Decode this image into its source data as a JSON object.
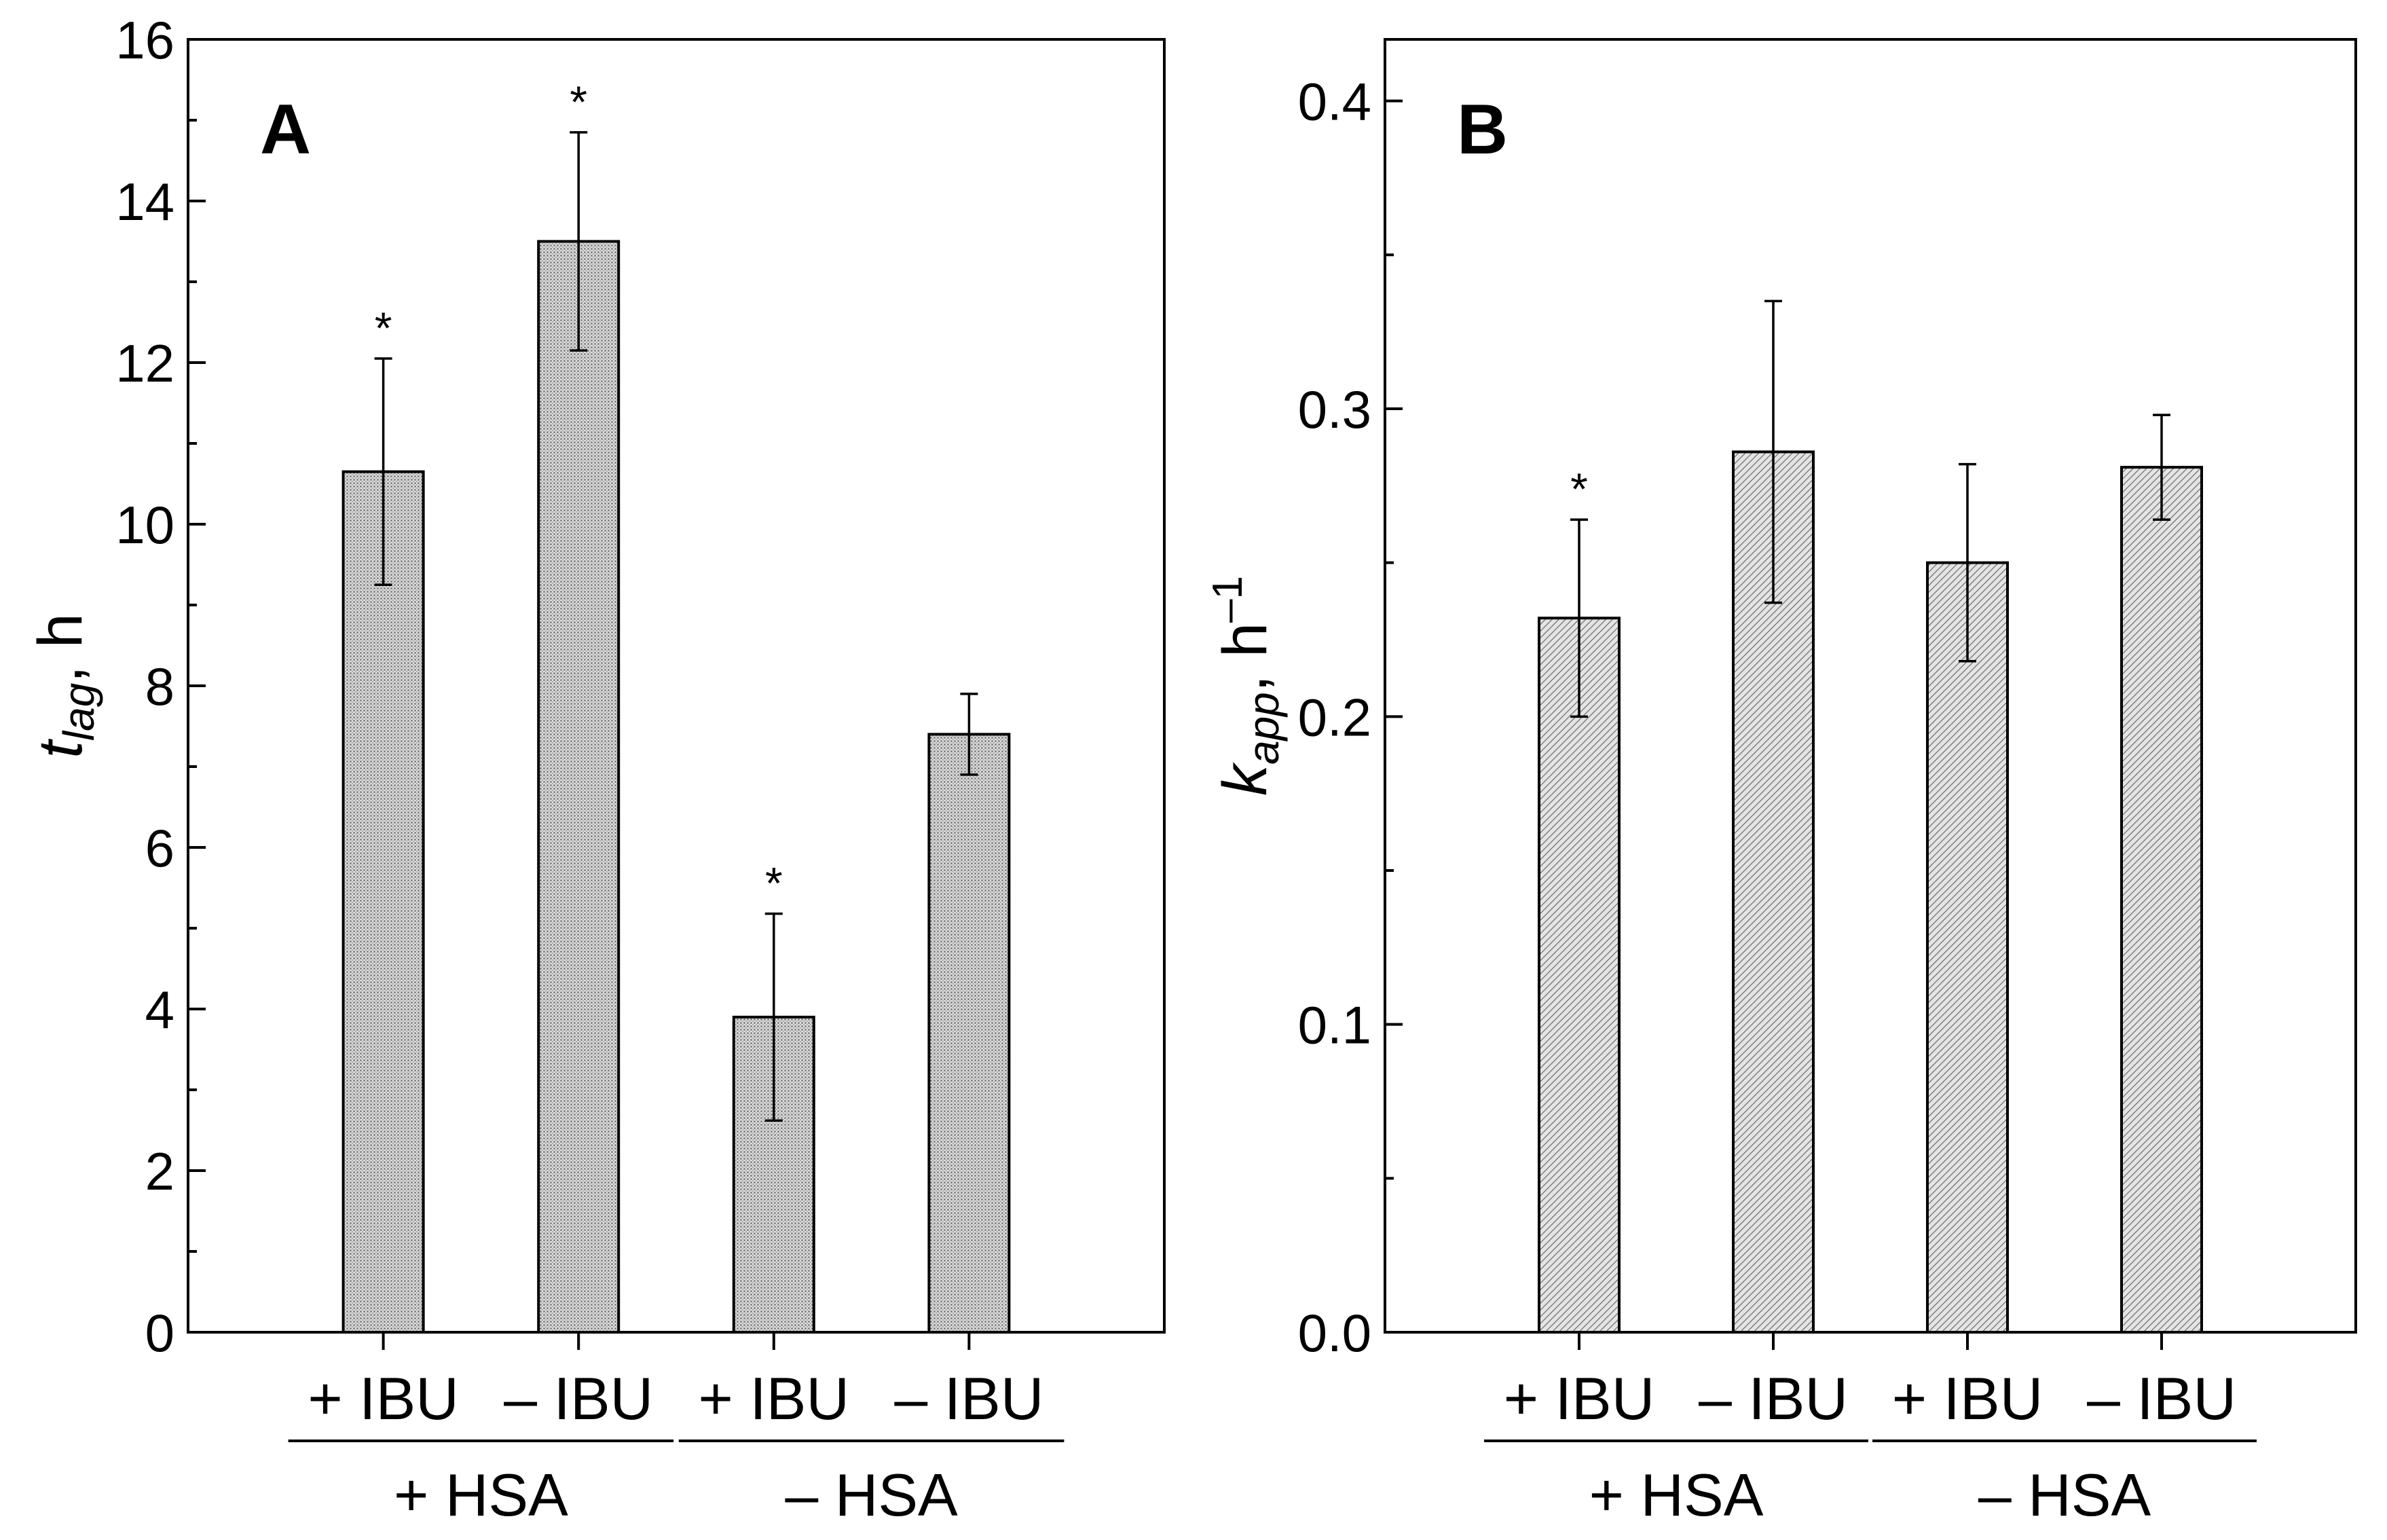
{
  "chart_data": [
    {
      "type": "bar",
      "panel_label": "A",
      "ylabel_main": "t",
      "ylabel_sub": "lag",
      "ylabel_unit": ", h",
      "ylim": [
        0,
        16
      ],
      "yticks": [
        0,
        2,
        4,
        6,
        8,
        10,
        12,
        14,
        16
      ],
      "yticks_minor_step": 1,
      "categories": [
        "+ IBU",
        "– IBU",
        "+ IBU",
        "– IBU"
      ],
      "groups": [
        "+ HSA",
        "– HSA"
      ],
      "values": [
        10.65,
        13.5,
        3.9,
        7.4
      ],
      "errors": [
        1.4,
        1.35,
        1.28,
        0.5
      ],
      "significant": [
        true,
        true,
        true,
        false
      ],
      "significance_mark": "*",
      "bar_pattern": "dense-dots",
      "grid": false
    },
    {
      "type": "bar",
      "panel_label": "B",
      "ylabel_main": "k",
      "ylabel_sub": "app",
      "ylabel_unit": ", h",
      "ylabel_sup": "–1",
      "ylim": [
        0,
        0.42
      ],
      "yticks": [
        0.0,
        0.1,
        0.2,
        0.3,
        0.4
      ],
      "yticks_minor_step": 0.05,
      "categories": [
        "+ IBU",
        "– IBU",
        "+ IBU",
        "– IBU"
      ],
      "groups": [
        "+ HSA",
        "– HSA"
      ],
      "values": [
        0.232,
        0.286,
        0.25,
        0.281
      ],
      "errors": [
        0.032,
        0.049,
        0.032,
        0.017
      ],
      "significant": [
        true,
        false,
        false,
        false
      ],
      "significance_mark": "*",
      "bar_pattern": "diagonal-hatch",
      "grid": false
    }
  ]
}
